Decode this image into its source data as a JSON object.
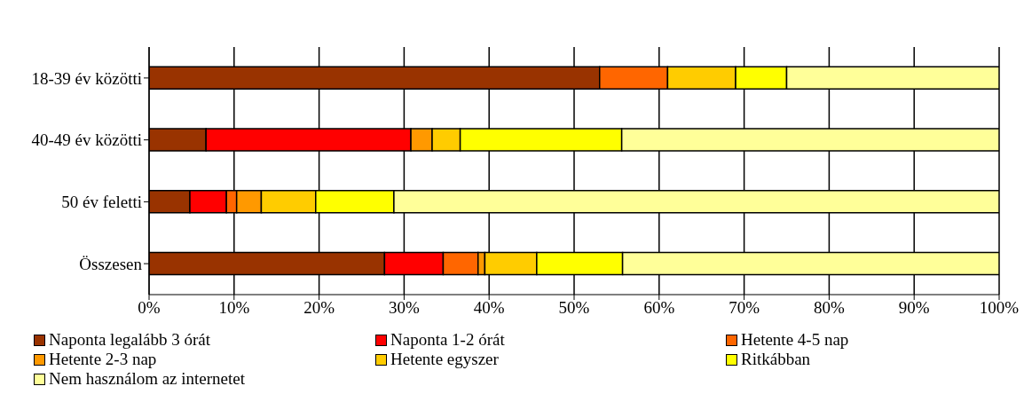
{
  "chart_data": {
    "type": "bar",
    "orientation": "horizontal",
    "stacked": true,
    "categories": [
      "18-39 év közötti",
      "40-49 év közötti",
      "50 év feletti",
      "Összesen"
    ],
    "series": [
      {
        "name": "Naponta legalább 3 órát",
        "color": "#993300",
        "values": [
          53,
          6.7,
          4.8,
          27.7
        ]
      },
      {
        "name": "Naponta 1-2 órát",
        "color": "#ff0000",
        "values": [
          0,
          24.1,
          4.3,
          6.9
        ]
      },
      {
        "name": "Hetente 4-5 nap",
        "color": "#ff6600",
        "values": [
          8,
          0,
          1.2,
          4.1
        ]
      },
      {
        "name": "Hetente 2-3 nap",
        "color": "#ff9900",
        "values": [
          0,
          2.5,
          2.9,
          0.8
        ]
      },
      {
        "name": "Hetente egyszer",
        "color": "#ffcc00",
        "values": [
          8,
          3.3,
          6.4,
          6.1
        ]
      },
      {
        "name": "Ritkábban",
        "color": "#ffff00",
        "values": [
          6,
          19,
          9.2,
          10.1
        ]
      },
      {
        "name": "Nem használom az internetet",
        "color": "#ffff99",
        "values": [
          25,
          44.4,
          71.2,
          44.3
        ]
      }
    ],
    "xlim": [
      0,
      100
    ],
    "xticks": [
      {
        "value": 0,
        "label": "0%"
      },
      {
        "value": 10,
        "label": "10%"
      },
      {
        "value": 20,
        "label": "20%"
      },
      {
        "value": 30,
        "label": "30%"
      },
      {
        "value": 40,
        "label": "40%"
      },
      {
        "value": 50,
        "label": "50%"
      },
      {
        "value": 60,
        "label": "60%"
      },
      {
        "value": 70,
        "label": "70%"
      },
      {
        "value": 80,
        "label": "80%"
      },
      {
        "value": 90,
        "label": "90%"
      },
      {
        "value": 100,
        "label": "100%"
      }
    ],
    "grid": "x",
    "legend": "bottom"
  }
}
